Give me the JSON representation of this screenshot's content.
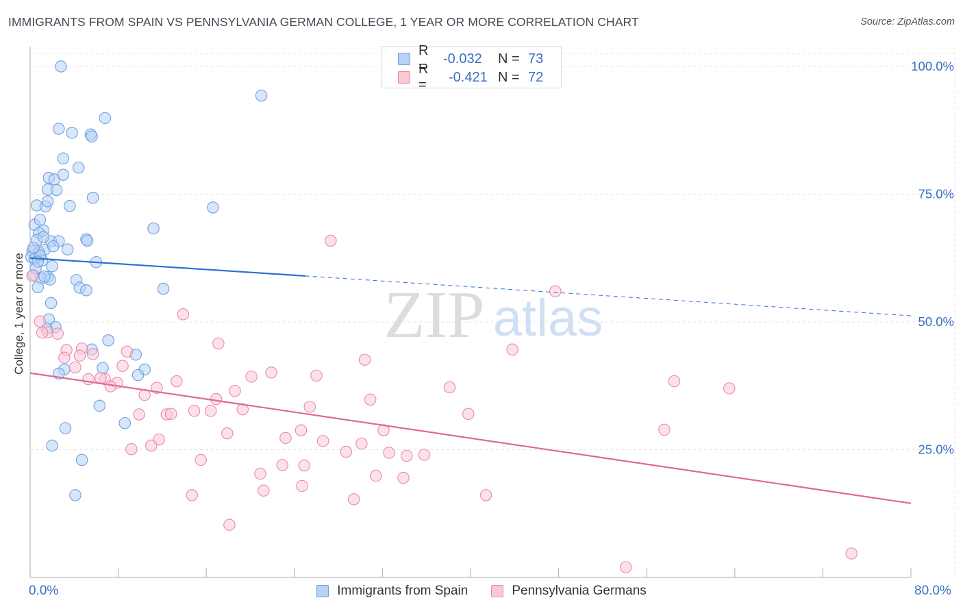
{
  "header": {
    "title": "IMMIGRANTS FROM SPAIN VS PENNSYLVANIA GERMAN COLLEGE, 1 YEAR OR MORE CORRELATION CHART",
    "source": "Source: ZipAtlas.com"
  },
  "watermark": {
    "zip": "ZIP",
    "atlas": "atlas"
  },
  "legend": {
    "r_label": "R =",
    "n_label": "N =",
    "entries": [
      {
        "name": "Immigrants from Spain",
        "r": "-0.032",
        "n": "73"
      },
      {
        "name": "Pennsylvania Germans",
        "r": "-0.421",
        "n": "72"
      }
    ]
  },
  "colors": {
    "blue_fill": "#b7d2f5",
    "blue_stroke": "#6f9fdc",
    "blue_line": "#2f6fcf",
    "pink_fill": "#f9c9d8",
    "pink_stroke": "#e889a7",
    "pink_line": "#e0679a",
    "axis_text": "#3a6fc4",
    "grid": "#e4e4e4"
  },
  "chart_data": {
    "type": "scatter",
    "title": "IMMIGRANTS FROM SPAIN VS PENNSYLVANIA GERMAN COLLEGE, 1 YEAR OR MORE CORRELATION CHART",
    "xlabel": "",
    "ylabel": "College, 1 year or more",
    "xlim": [
      0,
      80
    ],
    "ylim": [
      0,
      105
    ],
    "x_tick_labels": [
      "0.0%",
      "80.0%"
    ],
    "y_ticks": [
      25,
      50,
      75,
      100
    ],
    "y_tick_labels": [
      "25.0%",
      "50.0%",
      "75.0%",
      "100.0%"
    ],
    "grid": true,
    "legend_position": "top-center",
    "series": [
      {
        "name": "Immigrants from Spain",
        "color": "#6f9fdc",
        "trend": {
          "x": [
            0,
            25
          ],
          "y": [
            62.5,
            59.0
          ],
          "dashed_extension_to": [
            80,
            51.2
          ]
        },
        "points": [
          [
            2.8,
            100.0
          ],
          [
            21.0,
            94.3
          ],
          [
            6.8,
            89.9
          ],
          [
            2.6,
            87.8
          ],
          [
            3.8,
            87.0
          ],
          [
            5.5,
            86.7
          ],
          [
            5.6,
            86.3
          ],
          [
            3.0,
            82.0
          ],
          [
            4.4,
            80.2
          ],
          [
            1.7,
            78.2
          ],
          [
            2.2,
            77.9
          ],
          [
            3.0,
            78.8
          ],
          [
            1.6,
            75.9
          ],
          [
            2.4,
            75.8
          ],
          [
            0.6,
            72.8
          ],
          [
            1.4,
            72.6
          ],
          [
            1.6,
            73.6
          ],
          [
            3.6,
            72.7
          ],
          [
            5.7,
            74.3
          ],
          [
            16.6,
            72.4
          ],
          [
            0.4,
            69.0
          ],
          [
            0.9,
            70.0
          ],
          [
            1.2,
            67.9
          ],
          [
            0.8,
            67.4
          ],
          [
            11.2,
            68.3
          ],
          [
            0.6,
            66.0
          ],
          [
            1.9,
            65.8
          ],
          [
            2.6,
            65.8
          ],
          [
            5.1,
            66.2
          ],
          [
            5.2,
            65.9
          ],
          [
            1.3,
            64.1
          ],
          [
            2.1,
            64.8
          ],
          [
            3.4,
            64.2
          ],
          [
            0.2,
            63.8
          ],
          [
            0.8,
            63.6
          ],
          [
            0.1,
            62.7
          ],
          [
            0.4,
            62.3
          ],
          [
            1.1,
            62.0
          ],
          [
            6.0,
            61.7
          ],
          [
            0.3,
            59.2
          ],
          [
            1.6,
            58.8
          ],
          [
            1.0,
            58.5
          ],
          [
            1.8,
            58.3
          ],
          [
            4.2,
            58.2
          ],
          [
            0.7,
            56.8
          ],
          [
            4.5,
            56.7
          ],
          [
            5.1,
            56.2
          ],
          [
            12.1,
            56.5
          ],
          [
            1.9,
            53.7
          ],
          [
            1.7,
            50.5
          ],
          [
            2.3,
            49.0
          ],
          [
            1.5,
            48.7
          ],
          [
            7.1,
            46.4
          ],
          [
            5.6,
            44.6
          ],
          [
            9.6,
            43.6
          ],
          [
            6.6,
            41.0
          ],
          [
            10.4,
            40.7
          ],
          [
            3.1,
            40.7
          ],
          [
            2.6,
            39.9
          ],
          [
            9.8,
            39.6
          ],
          [
            6.3,
            33.6
          ],
          [
            8.6,
            30.2
          ],
          [
            3.2,
            29.2
          ],
          [
            2.0,
            25.8
          ],
          [
            4.7,
            23.0
          ],
          [
            4.1,
            16.1
          ],
          [
            0.5,
            60.5
          ],
          [
            0.9,
            63.0
          ],
          [
            1.3,
            58.9
          ],
          [
            0.3,
            64.5
          ],
          [
            2.0,
            60.9
          ],
          [
            0.7,
            61.8
          ],
          [
            1.2,
            66.6
          ]
        ]
      },
      {
        "name": "Pennsylvania Germans",
        "color": "#e889a7",
        "trend": {
          "x": [
            0,
            80
          ],
          "y": [
            40.0,
            14.5
          ]
        },
        "points": [
          [
            0.2,
            59.0
          ],
          [
            27.3,
            65.9
          ],
          [
            47.7,
            56.0
          ],
          [
            13.9,
            51.5
          ],
          [
            0.9,
            50.1
          ],
          [
            1.6,
            48.0
          ],
          [
            2.5,
            47.7
          ],
          [
            17.1,
            45.8
          ],
          [
            4.7,
            44.8
          ],
          [
            3.3,
            44.5
          ],
          [
            8.8,
            44.2
          ],
          [
            43.8,
            44.6
          ],
          [
            3.1,
            43.0
          ],
          [
            4.5,
            43.4
          ],
          [
            5.7,
            43.7
          ],
          [
            30.4,
            42.6
          ],
          [
            8.4,
            41.4
          ],
          [
            4.1,
            41.1
          ],
          [
            21.9,
            40.1
          ],
          [
            26.0,
            39.5
          ],
          [
            20.1,
            39.3
          ],
          [
            5.3,
            38.8
          ],
          [
            6.8,
            38.8
          ],
          [
            7.9,
            38.1
          ],
          [
            13.3,
            38.4
          ],
          [
            58.5,
            38.4
          ],
          [
            63.5,
            37.0
          ],
          [
            38.1,
            37.2
          ],
          [
            7.3,
            37.4
          ],
          [
            11.5,
            37.1
          ],
          [
            18.6,
            36.5
          ],
          [
            10.4,
            35.7
          ],
          [
            16.9,
            34.9
          ],
          [
            30.9,
            34.8
          ],
          [
            25.4,
            33.4
          ],
          [
            19.3,
            32.9
          ],
          [
            14.9,
            32.6
          ],
          [
            16.4,
            32.6
          ],
          [
            39.8,
            32.0
          ],
          [
            9.9,
            31.9
          ],
          [
            12.4,
            31.9
          ],
          [
            12.8,
            32.0
          ],
          [
            24.6,
            28.8
          ],
          [
            32.1,
            28.8
          ],
          [
            57.6,
            28.9
          ],
          [
            17.9,
            28.2
          ],
          [
            23.2,
            27.3
          ],
          [
            11.7,
            27.0
          ],
          [
            26.6,
            26.7
          ],
          [
            30.1,
            26.2
          ],
          [
            11.0,
            25.8
          ],
          [
            9.2,
            25.1
          ],
          [
            28.7,
            24.6
          ],
          [
            32.6,
            24.4
          ],
          [
            34.2,
            23.8
          ],
          [
            35.8,
            24.0
          ],
          [
            15.5,
            23.0
          ],
          [
            22.9,
            22.0
          ],
          [
            24.9,
            21.9
          ],
          [
            20.9,
            20.3
          ],
          [
            31.4,
            19.9
          ],
          [
            33.9,
            19.5
          ],
          [
            24.7,
            17.9
          ],
          [
            21.2,
            17.0
          ],
          [
            14.7,
            16.1
          ],
          [
            29.4,
            15.3
          ],
          [
            41.4,
            16.1
          ],
          [
            18.1,
            10.3
          ],
          [
            74.6,
            4.7
          ],
          [
            54.1,
            2.0
          ],
          [
            1.1,
            47.9
          ],
          [
            6.4,
            39.0
          ]
        ]
      }
    ]
  }
}
